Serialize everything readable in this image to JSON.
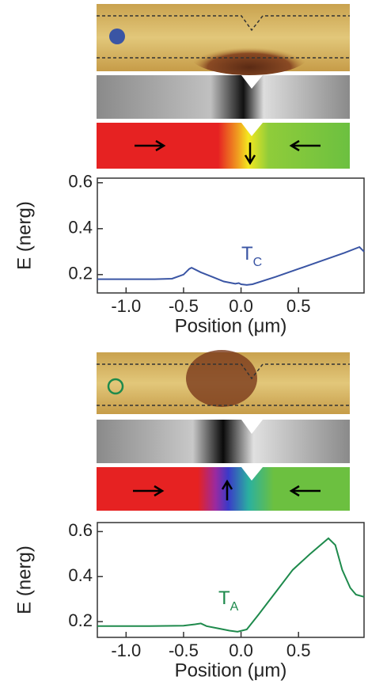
{
  "chart_data": [
    {
      "type": "line",
      "xlabel": "Position (μm)",
      "ylabel": "E (nerg)",
      "annotation": "T",
      "annotation_subscript": "C",
      "color": "#3a55a4",
      "x": [
        -1.25,
        -1.0,
        -0.75,
        -0.6,
        -0.5,
        -0.45,
        -0.43,
        -0.35,
        -0.25,
        -0.15,
        -0.05,
        -0.02,
        0.0,
        0.05,
        0.1,
        0.3,
        0.5,
        0.7,
        0.9,
        1.03,
        1.07
      ],
      "values": [
        0.18,
        0.18,
        0.18,
        0.182,
        0.2,
        0.225,
        0.23,
        0.21,
        0.19,
        0.17,
        0.16,
        0.163,
        0.158,
        0.155,
        0.158,
        0.19,
        0.225,
        0.26,
        0.295,
        0.32,
        0.3
      ],
      "xlim": [
        -1.25,
        1.07
      ],
      "ylim": [
        0.12,
        0.62
      ],
      "xticks": [
        {
          "value": -1.0,
          "label": "-1.0"
        },
        -0.5,
        {
          "value": 0.0,
          "label": "0.0"
        },
        0.5
      ],
      "yticks": [
        0.2,
        0.4,
        0.6
      ]
    },
    {
      "type": "line",
      "xlabel": "Position (μm)",
      "ylabel": "E (nerg)",
      "annotation": "T",
      "annotation_subscript": "A",
      "color": "#1e8a4c",
      "x": [
        -1.25,
        -0.8,
        -0.5,
        -0.4,
        -0.35,
        -0.3,
        -0.2,
        -0.1,
        -0.03,
        0.05,
        0.15,
        0.3,
        0.45,
        0.6,
        0.76,
        0.82,
        0.88,
        0.95,
        1.0,
        1.07
      ],
      "values": [
        0.18,
        0.18,
        0.182,
        0.188,
        0.192,
        0.18,
        0.17,
        0.16,
        0.155,
        0.165,
        0.23,
        0.33,
        0.43,
        0.5,
        0.57,
        0.54,
        0.43,
        0.35,
        0.32,
        0.31
      ],
      "xlim": [
        -1.25,
        1.07
      ],
      "ylim": [
        0.13,
        0.64
      ],
      "xticks": [
        {
          "value": -1.0,
          "label": "-1.0"
        },
        -0.5,
        {
          "value": 0.0,
          "label": "0.0"
        },
        0.5
      ],
      "yticks": [
        0.2,
        0.4,
        0.6
      ]
    }
  ]
}
